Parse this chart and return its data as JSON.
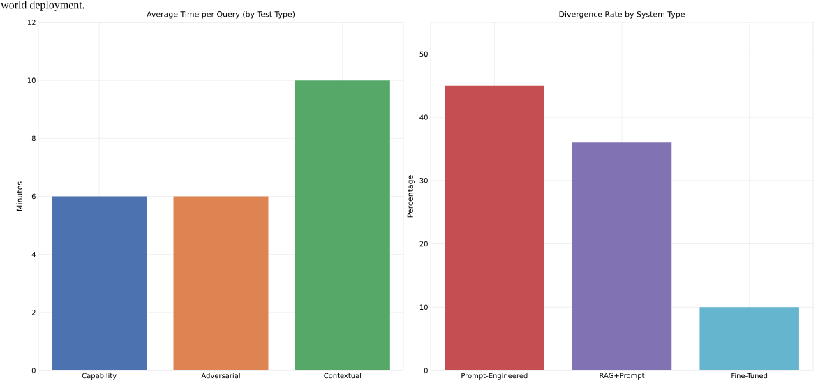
{
  "chart_data": [
    {
      "type": "bar",
      "title": "Average Time per Query (by Test Type)",
      "ylabel": "Minutes",
      "categories": [
        "Capability",
        "Adversarial",
        "Contextual"
      ],
      "values": [
        6,
        6,
        10
      ],
      "colors": [
        "#4c72b0",
        "#dd8452",
        "#55a868"
      ],
      "ylim": [
        0,
        12
      ],
      "yticks": [
        0,
        2,
        4,
        6,
        8,
        10,
        12
      ],
      "grid": true,
      "annotations": [
        "world deployment."
      ]
    },
    {
      "type": "bar",
      "title": "Divergence Rate by System Type",
      "ylabel": "Percentage",
      "categories": [
        "Prompt-Engineered",
        "RAG+Prompt",
        "Fine-Tuned"
      ],
      "values": [
        45,
        36,
        10
      ],
      "colors": [
        "#c44e52",
        "#8172b3",
        "#64b5cd"
      ],
      "ylim": [
        0,
        55
      ],
      "yticks": [
        0,
        10,
        20,
        30,
        40,
        50
      ],
      "grid": true
    }
  ]
}
